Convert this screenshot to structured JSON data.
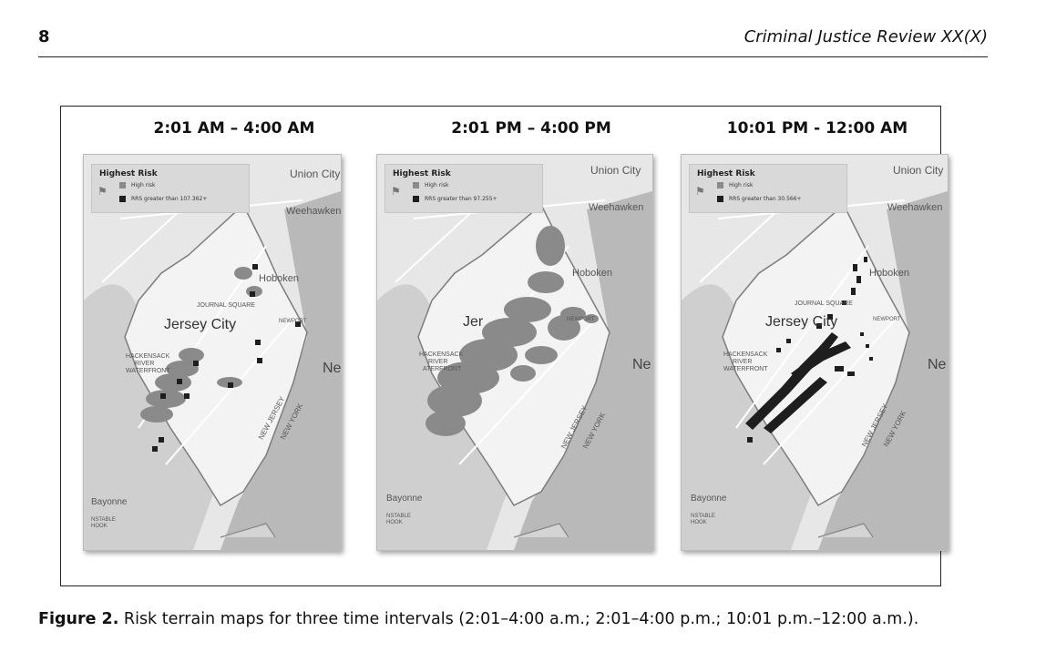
{
  "header": {
    "page_number": "8",
    "journal": "Criminal Justice Review XX(X)"
  },
  "figure": {
    "panels": [
      {
        "title": "2:01 AM – 4:00 AM",
        "legend": {
          "title": "Highest Risk",
          "item1": "High risk",
          "item2": "RRS greater than 107.362+"
        },
        "labels": {
          "city_top": "Union City",
          "weehawken": "Weehawken",
          "hoboken": "Hoboken",
          "journal_square": "JOURNAL SQUARE",
          "jersey_city": "Jersey City",
          "newport": "NEWPORT",
          "hackensack": "HACKENSACK",
          "river": "RIVER",
          "waterfront": "WATERFRONT",
          "ne": "Ne",
          "new_jersey": "NEW JERSEY",
          "new_york": "NEW YORK",
          "bayonne": "Bayonne",
          "constable": "NSTABLE",
          "hook": "HOOK"
        }
      },
      {
        "title": "2:01 PM – 4:00 PM",
        "legend": {
          "title": "Highest Risk",
          "item1": "High risk",
          "item2": "RRS greater than 97.255+"
        },
        "labels": {
          "city_top": "Union City",
          "weehawken": "Weehawken",
          "hoboken": "Hoboken",
          "journal_square": "",
          "jersey_city": "Jer",
          "newport": "NEWPORT",
          "hackensack": "HACKENSACK",
          "river": "RIVER",
          "waterfront": "ATERFRONT",
          "ne": "Ne",
          "new_jersey": "NEW JERSEY",
          "new_york": "NEW YORK",
          "bayonne": "Bayonne",
          "constable": "NSTABLE",
          "hook": "HOOK"
        }
      },
      {
        "title": "10:01 PM - 12:00 AM",
        "legend": {
          "title": "Highest Risk",
          "item1": "High risk",
          "item2": "RRS greater than 30.566+"
        },
        "labels": {
          "city_top": "Union City",
          "weehawken": "Weehawken",
          "hoboken": "Hoboken",
          "journal_square": "JOURNAL SQUARE",
          "jersey_city": "Jersey City",
          "newport": "NEWPORT",
          "hackensack": "HACKENSACK",
          "river": "RIVER",
          "waterfront": "WATERFRONT",
          "ne": "Ne",
          "new_jersey": "NEW JERSEY",
          "new_york": "NEW YORK",
          "bayonne": "Bayonne",
          "constable": "NSTABLE",
          "hook": "HOOK"
        }
      }
    ],
    "colors": {
      "high_risk": "#8a8a8a",
      "rrs": "#1e1e1e",
      "water": "#b9b9b9",
      "land": "#e7e7e7",
      "city": "#f3f3f3"
    }
  },
  "caption": {
    "label": "Figure 2.",
    "text": " Risk terrain maps for three time intervals (2:01–4:00 a.m.; 2:01–4:00 p.m.; 10:01 p.m.–12:00 a.m.)."
  }
}
